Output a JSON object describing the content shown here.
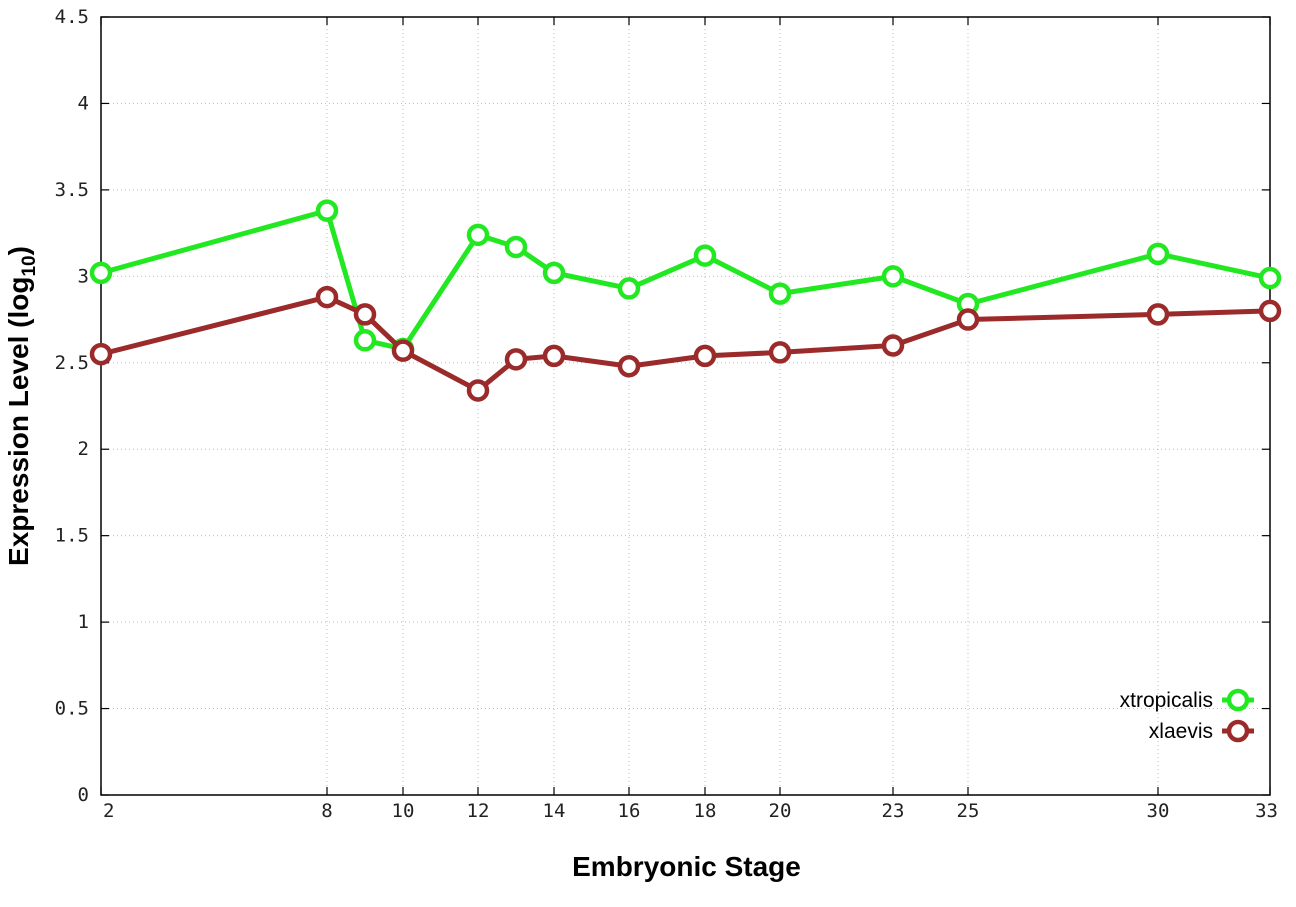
{
  "chart_data": {
    "type": "line",
    "xlabel": "Embryonic Stage",
    "ylabel_main": "Expression Level (log",
    "ylabel_sub": "10",
    "ylabel_close": ")",
    "categories": [
      "2",
      "8",
      "9",
      "10",
      "12",
      "13",
      "14",
      "16",
      "18",
      "20",
      "23",
      "25",
      "30",
      "33"
    ],
    "x_tick_labels": [
      "2",
      "8",
      "10",
      "12",
      "14",
      "16",
      "18",
      "20",
      "23",
      "25",
      "30",
      "33"
    ],
    "ylim": [
      0,
      4.5
    ],
    "y_tick_labels": [
      "0",
      "0.5",
      "1",
      "1.5",
      "2",
      "2.5",
      "3",
      "3.5",
      "4",
      "4.5"
    ],
    "grid": true,
    "legend_position": "bottom-right",
    "series": [
      {
        "name": "xtropicalis",
        "color": "#22e822",
        "values": [
          3.02,
          3.38,
          2.63,
          2.58,
          3.24,
          3.17,
          3.02,
          2.93,
          3.12,
          2.9,
          3.0,
          2.84,
          3.13,
          2.99
        ]
      },
      {
        "name": "xlaevis",
        "color": "#9b2a2a",
        "values": [
          2.55,
          2.88,
          2.78,
          2.57,
          2.34,
          2.52,
          2.54,
          2.48,
          2.54,
          2.56,
          2.6,
          2.75,
          2.78,
          2.8
        ]
      }
    ]
  }
}
